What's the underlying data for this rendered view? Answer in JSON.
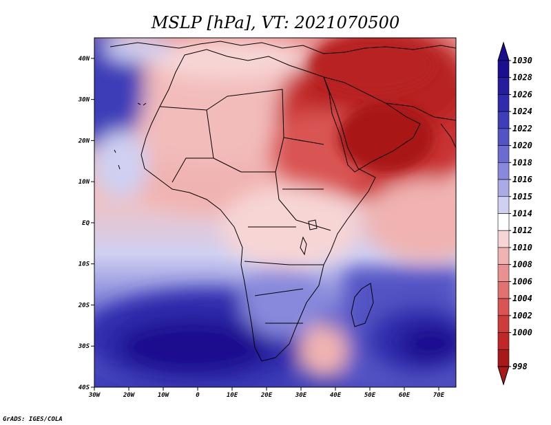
{
  "title": "MSLP [hPa], VT: 2021070500",
  "footer": "GrADS: IGES/COLA",
  "map": {
    "projection": "latlon",
    "lon_range": [
      -30,
      75
    ],
    "lat_range": [
      -40,
      45
    ],
    "variable": "MSLP",
    "units": "hPa",
    "valid_time": "2021070500",
    "lon_ticks": [
      {
        "value": -30,
        "label": "30W"
      },
      {
        "value": -20,
        "label": "20W"
      },
      {
        "value": -10,
        "label": "10W"
      },
      {
        "value": 0,
        "label": "0"
      },
      {
        "value": 10,
        "label": "10E"
      },
      {
        "value": 20,
        "label": "20E"
      },
      {
        "value": 30,
        "label": "30E"
      },
      {
        "value": 40,
        "label": "40E"
      },
      {
        "value": 50,
        "label": "50E"
      },
      {
        "value": 60,
        "label": "60E"
      },
      {
        "value": 70,
        "label": "70E"
      }
    ],
    "lat_ticks": [
      {
        "value": 40,
        "label": "40N"
      },
      {
        "value": 30,
        "label": "30N"
      },
      {
        "value": 20,
        "label": "20N"
      },
      {
        "value": 10,
        "label": "10N"
      },
      {
        "value": 0,
        "label": "EQ"
      },
      {
        "value": -10,
        "label": "10S"
      },
      {
        "value": -20,
        "label": "20S"
      },
      {
        "value": -30,
        "label": "30S"
      },
      {
        "value": -40,
        "label": "40S"
      }
    ]
  },
  "colorbar": {
    "levels": [
      {
        "label": "1030",
        "color": "#1a0f8f"
      },
      {
        "label": "1028",
        "color": "#251c9e"
      },
      {
        "label": "1026",
        "color": "#2f2cab"
      },
      {
        "label": "1024",
        "color": "#3d3eb8"
      },
      {
        "label": "1022",
        "color": "#5253c4"
      },
      {
        "label": "1020",
        "color": "#6a6cd0"
      },
      {
        "label": "1018",
        "color": "#8889dc"
      },
      {
        "label": "1016",
        "color": "#a9aae6"
      },
      {
        "label": "1015",
        "color": "#cfd0f2"
      },
      {
        "label": "1014",
        "color": "#ffffff"
      },
      {
        "label": "1012",
        "color": "#f7d5d5"
      },
      {
        "label": "1010",
        "color": "#f0b3b1"
      },
      {
        "label": "1008",
        "color": "#e99190"
      },
      {
        "label": "1006",
        "color": "#e27270"
      },
      {
        "label": "1004",
        "color": "#d95452"
      },
      {
        "label": "1002",
        "color": "#cf3b39"
      },
      {
        "label": "1000",
        "color": "#c02726"
      },
      {
        "label": "998",
        "color": "#a81919"
      }
    ]
  }
}
